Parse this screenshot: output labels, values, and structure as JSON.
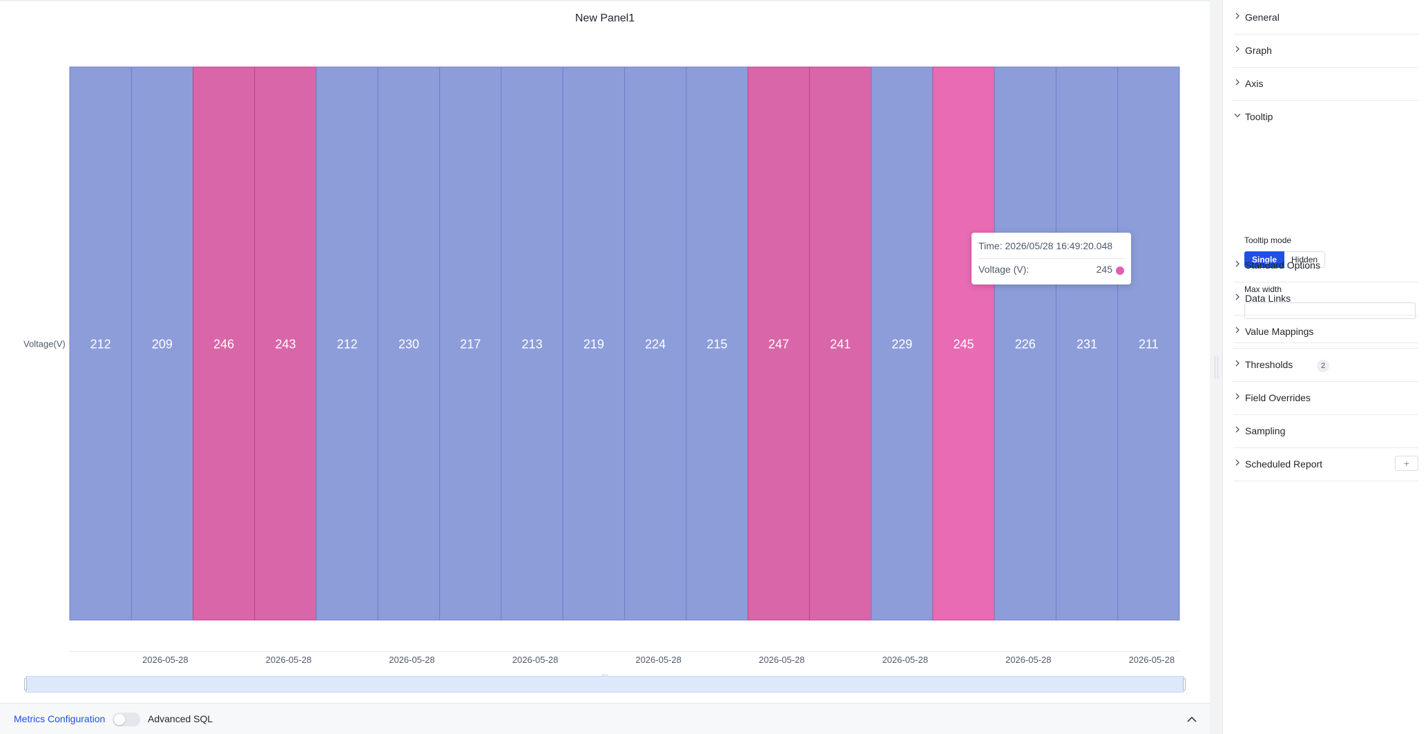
{
  "panel": {
    "title": "New Panel1"
  },
  "chart_data": {
    "type": "heatmap",
    "ylabel": "Voltage(V)",
    "series_name": "Voltage (V)",
    "values": [
      212,
      209,
      246,
      243,
      212,
      230,
      217,
      213,
      219,
      224,
      215,
      247,
      241,
      229,
      245,
      226,
      231,
      211
    ],
    "x_tick_labels": [
      "2026-05-28",
      "2026-05-28",
      "2026-05-28",
      "2026-05-28",
      "2026-05-28",
      "2026-05-28",
      "2026-05-28",
      "2026-05-28",
      "2026-05-28"
    ],
    "threshold": 240,
    "colors": {
      "below": "#8c9dd9",
      "above": "#d966a8",
      "hover": "#e86bb4",
      "below_border": "#6c7fd0",
      "above_border": "#c4408f"
    },
    "hovered_index": 14
  },
  "tooltip": {
    "time": "Time: 2026/05/28 16:49:20.048",
    "series": "Voltage (V):",
    "value": "245",
    "dot_color": "#e060b0"
  },
  "bottom_bar": {
    "metrics_config": "Metrics Configuration",
    "advanced_sql": "Advanced SQL",
    "advanced_sql_enabled": false
  },
  "right_panel": {
    "sections": [
      {
        "id": "general",
        "label": "General",
        "expanded": false
      },
      {
        "id": "graph",
        "label": "Graph",
        "expanded": false
      },
      {
        "id": "axis",
        "label": "Axis",
        "expanded": false
      },
      {
        "id": "tooltip",
        "label": "Tooltip",
        "expanded": true
      },
      {
        "id": "standard-options",
        "label": "Standard Options",
        "expanded": false
      },
      {
        "id": "data-links",
        "label": "Data Links",
        "expanded": false
      },
      {
        "id": "value-mappings",
        "label": "Value Mappings",
        "expanded": false
      },
      {
        "id": "thresholds",
        "label": "Thresholds",
        "expanded": false,
        "badge": "2"
      },
      {
        "id": "field-overrides",
        "label": "Field Overrides",
        "expanded": false
      },
      {
        "id": "sampling",
        "label": "Sampling",
        "expanded": false
      },
      {
        "id": "scheduled-report",
        "label": "Scheduled Report",
        "expanded": false,
        "add_button": "+"
      }
    ],
    "tooltip_options": {
      "mode_label": "Tooltip mode",
      "modes": [
        "Single",
        "Hidden"
      ],
      "selected_mode": "Single",
      "max_width_label": "Max width",
      "max_width_value": ""
    }
  }
}
